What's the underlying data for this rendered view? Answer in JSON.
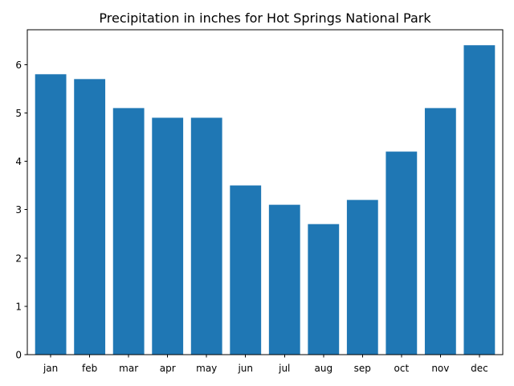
{
  "chart_data": {
    "type": "bar",
    "title": "Precipitation in inches for Hot Springs National Park",
    "xlabel": "",
    "ylabel": "",
    "categories": [
      "jan",
      "feb",
      "mar",
      "apr",
      "may",
      "jun",
      "jul",
      "aug",
      "sep",
      "oct",
      "nov",
      "dec"
    ],
    "values": [
      5.8,
      5.7,
      5.1,
      4.9,
      4.9,
      3.5,
      3.1,
      2.7,
      3.2,
      4.2,
      5.1,
      6.4
    ],
    "ylim": [
      0,
      6.72
    ],
    "yticks": [
      0,
      1,
      2,
      3,
      4,
      5,
      6
    ],
    "bar_color": "#1f77b4",
    "grid": false,
    "legend": "none"
  }
}
